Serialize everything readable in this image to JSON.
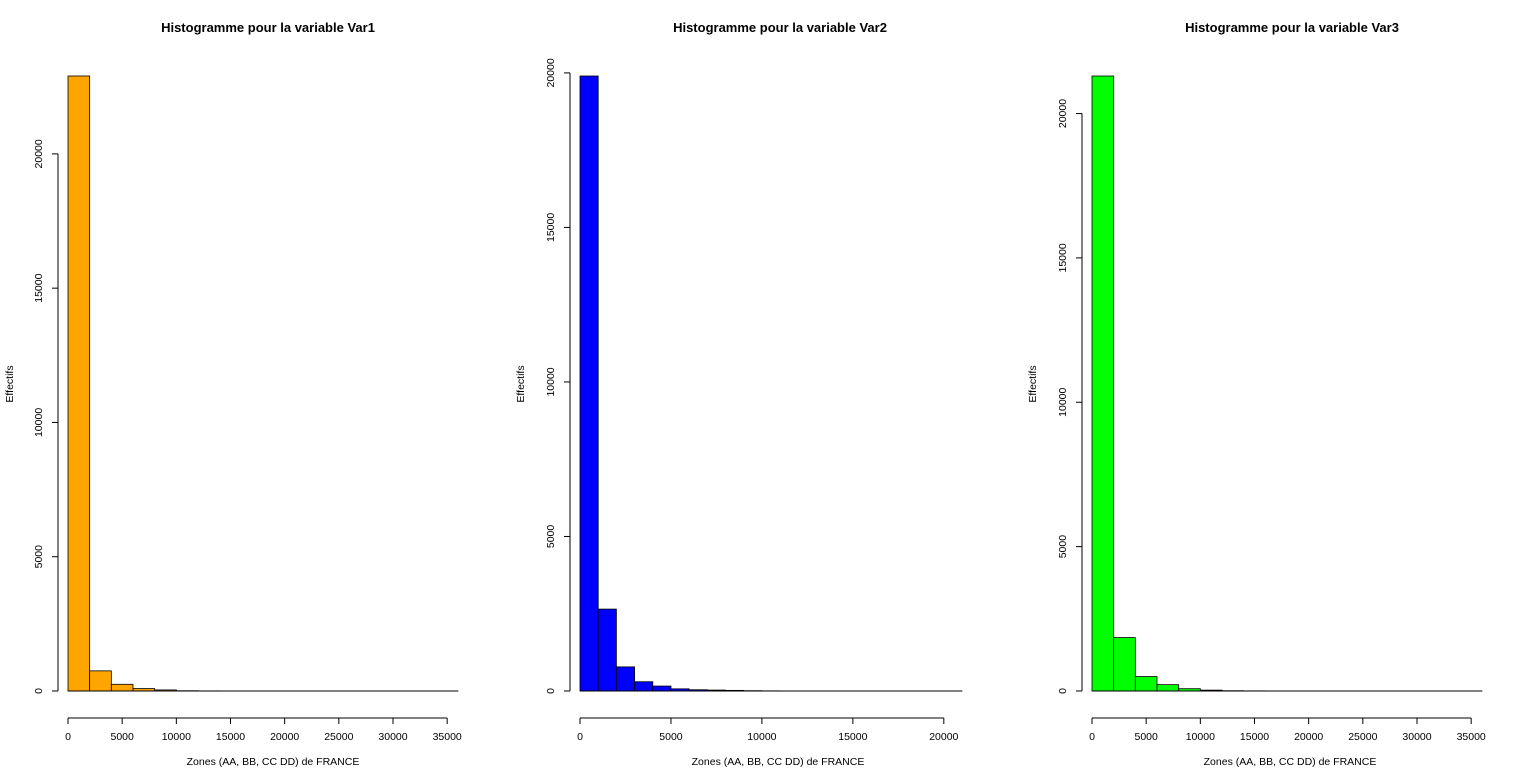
{
  "chart_data": [
    {
      "type": "bar",
      "title": "Histogramme pour la variable Var1",
      "xlabel": "Zones (AA, BB, CC DD) de FRANCE",
      "ylabel": "Effectifs",
      "color": "#FFA500",
      "bin_edges": [
        0,
        2000,
        4000,
        6000,
        8000,
        10000,
        12000,
        14000,
        16000,
        18000,
        20000,
        22000,
        24000,
        26000,
        28000,
        30000,
        32000,
        34000,
        36000
      ],
      "values": [
        22900,
        750,
        250,
        90,
        40,
        10,
        5,
        3,
        2,
        2,
        1,
        1,
        1,
        1,
        1,
        0,
        0,
        1
      ],
      "xticks": [
        0,
        5000,
        10000,
        15000,
        20000,
        25000,
        30000,
        35000
      ],
      "xtick_labels": [
        "0",
        "5000",
        "10000",
        "15000",
        "20000",
        "25000",
        "30000",
        "35000"
      ],
      "yticks": [
        0,
        5000,
        10000,
        15000,
        20000
      ],
      "ytick_labels": [
        "0",
        "5000",
        "10000",
        "15000",
        "20000"
      ],
      "xlim": [
        0,
        36000
      ],
      "ylim": [
        0,
        22900
      ]
    },
    {
      "type": "bar",
      "title": "Histogramme pour la variable Var2",
      "xlabel": "Zones (AA, BB, CC DD) de FRANCE",
      "ylabel": "Effectifs",
      "color": "#0000FF",
      "bin_edges": [
        0,
        1000,
        2000,
        3000,
        4000,
        5000,
        6000,
        7000,
        8000,
        9000,
        10000,
        11000,
        12000,
        13000,
        14000,
        15000,
        16000,
        17000,
        18000,
        19000,
        20000,
        21000
      ],
      "values": [
        19900,
        2650,
        780,
        300,
        160,
        70,
        40,
        30,
        20,
        10,
        5,
        3,
        2,
        2,
        1,
        1,
        1,
        1,
        1,
        1,
        1
      ],
      "xticks": [
        0,
        5000,
        10000,
        15000,
        20000
      ],
      "xtick_labels": [
        "0",
        "5000",
        "10000",
        "15000",
        "20000"
      ],
      "yticks": [
        0,
        5000,
        10000,
        15000,
        20000
      ],
      "ytick_labels": [
        "0",
        "5000",
        "10000",
        "15000",
        "20000"
      ],
      "xlim": [
        0,
        21000
      ],
      "ylim": [
        0,
        19900
      ]
    },
    {
      "type": "bar",
      "title": "Histogramme pour la variable Var3",
      "xlabel": "Zones (AA, BB, CC DD) de FRANCE",
      "ylabel": "Effectifs",
      "color": "#00FF00",
      "bin_edges": [
        0,
        2000,
        4000,
        6000,
        8000,
        10000,
        12000,
        14000,
        16000,
        18000,
        20000,
        22000,
        24000,
        26000,
        28000,
        30000,
        32000,
        34000,
        36000
      ],
      "values": [
        21300,
        1850,
        500,
        220,
        80,
        30,
        10,
        5,
        3,
        2,
        1,
        1,
        1,
        1,
        1,
        0,
        0,
        1
      ],
      "xticks": [
        0,
        5000,
        10000,
        15000,
        20000,
        25000,
        30000,
        35000
      ],
      "xtick_labels": [
        "0",
        "5000",
        "10000",
        "15000",
        "20000",
        "25000",
        "30000",
        "35000"
      ],
      "yticks": [
        0,
        5000,
        10000,
        15000,
        20000
      ],
      "ytick_labels": [
        "0",
        "5000",
        "10000",
        "15000",
        "20000"
      ],
      "xlim": [
        0,
        36000
      ],
      "ylim": [
        0,
        21300
      ]
    }
  ]
}
